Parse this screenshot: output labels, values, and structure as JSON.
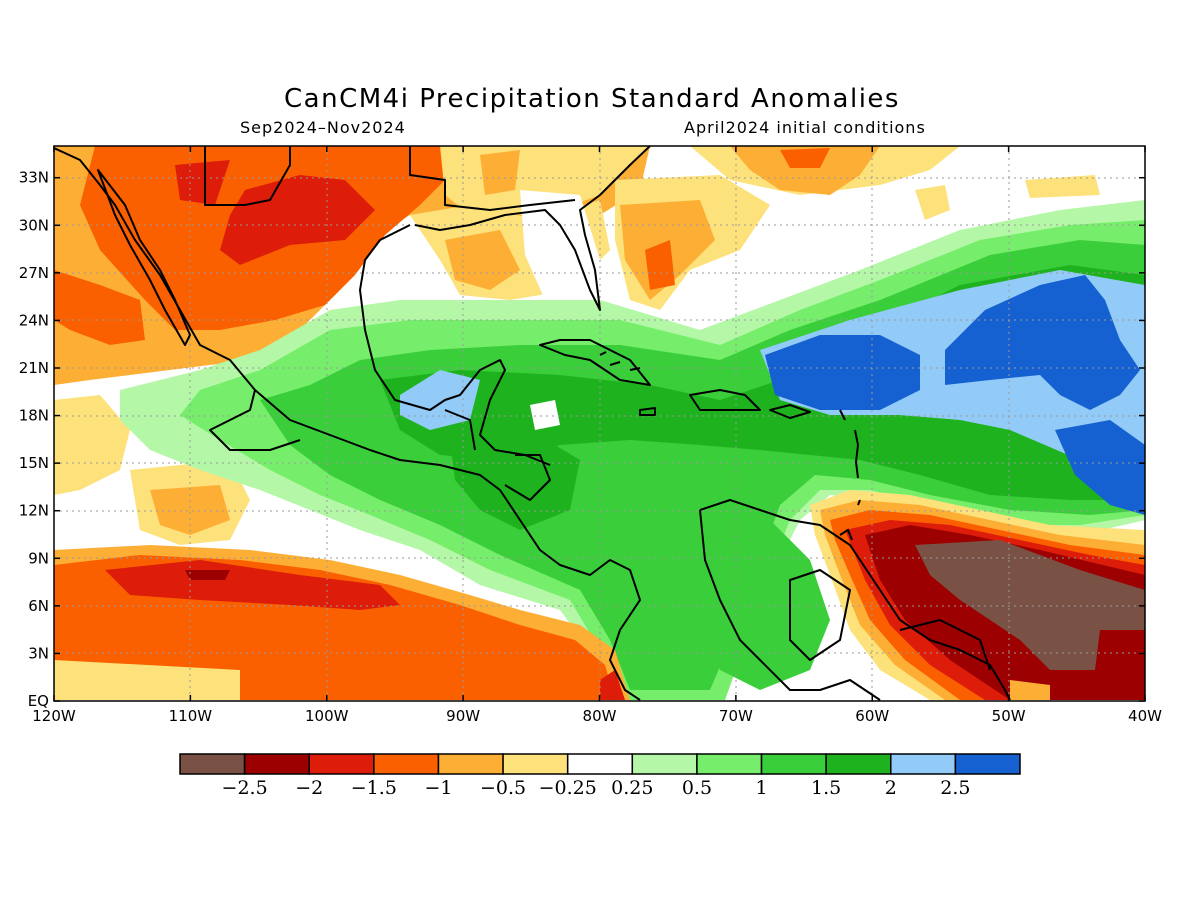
{
  "title": "CanCM4i Precipitation Standard Anomalies",
  "subtitle_left": "Sep2024–Nov2024",
  "subtitle_right": "April2024 initial conditions",
  "map": {
    "lon_range": [
      -120,
      -40
    ],
    "lat_range": [
      0,
      35
    ],
    "lat_ticks": [
      {
        "lat": 33,
        "label": "33N"
      },
      {
        "lat": 30,
        "label": "30N"
      },
      {
        "lat": 27,
        "label": "27N"
      },
      {
        "lat": 24,
        "label": "24N"
      },
      {
        "lat": 21,
        "label": "21N"
      },
      {
        "lat": 18,
        "label": "18N"
      },
      {
        "lat": 15,
        "label": "15N"
      },
      {
        "lat": 12,
        "label": "12N"
      },
      {
        "lat": 9,
        "label": "9N"
      },
      {
        "lat": 6,
        "label": "6N"
      },
      {
        "lat": 3,
        "label": "3N"
      },
      {
        "lat": 0,
        "label": "EQ"
      }
    ],
    "lon_ticks": [
      {
        "lon": -120,
        "label": "120W"
      },
      {
        "lon": -110,
        "label": "110W"
      },
      {
        "lon": -100,
        "label": "100W"
      },
      {
        "lon": -90,
        "label": "90W"
      },
      {
        "lon": -80,
        "label": "80W"
      },
      {
        "lon": -70,
        "label": "70W"
      },
      {
        "lon": -60,
        "label": "60W"
      },
      {
        "lon": -50,
        "label": "50W"
      },
      {
        "lon": -40,
        "label": "40W"
      }
    ],
    "grid": true
  },
  "colorbar": {
    "colors": [
      "#7a5145",
      "#9c0000",
      "#dd1c0a",
      "#fb6000",
      "#fdaf35",
      "#fde17b",
      "#ffffff",
      "#b4f7a7",
      "#76ee6b",
      "#3bce3b",
      "#1eb31e",
      "#92cbf7",
      "#1561d1"
    ],
    "labels": [
      "−2.5",
      "−2",
      "−1.5",
      "−1",
      "−0.5",
      "−0.25",
      "0.25",
      "0.5",
      "1",
      "1.5",
      "2",
      "2.5"
    ]
  }
}
